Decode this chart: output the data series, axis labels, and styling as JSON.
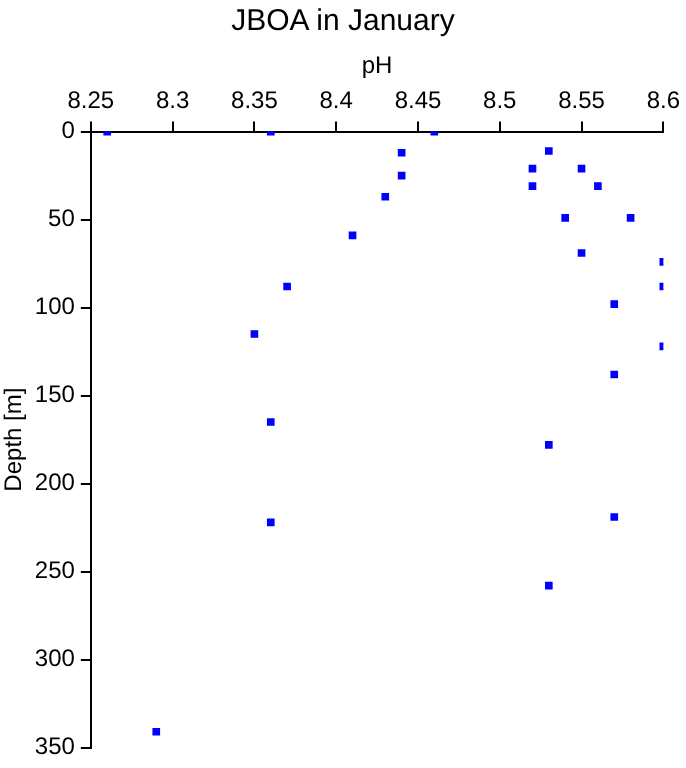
{
  "chart_data": {
    "type": "scatter",
    "title": "JBOA in January",
    "xlabel": "pH",
    "ylabel": "Depth [m]",
    "x": [
      8.26,
      8.36,
      8.46,
      8.44,
      8.44,
      8.43,
      8.41,
      8.37,
      8.53,
      8.52,
      8.52,
      8.55,
      8.56,
      8.54,
      8.58,
      8.55,
      8.6,
      8.6,
      8.57,
      8.35,
      8.6,
      8.57,
      8.36,
      8.53,
      8.36,
      8.57,
      8.53,
      8.29
    ],
    "values": [
      0,
      0,
      0,
      12,
      25,
      37,
      59,
      88,
      11,
      21,
      31,
      21,
      31,
      49,
      49,
      69,
      74,
      88,
      98,
      115,
      122,
      138,
      165,
      178,
      222,
      219,
      258,
      341
    ],
    "color": "#0000ff",
    "marker": "square",
    "xlim": [
      8.25,
      8.6
    ],
    "xticks": [
      8.25,
      8.3,
      8.35,
      8.4,
      8.45,
      8.5,
      8.55,
      8.6
    ],
    "ylim": [
      350,
      0
    ],
    "yticks": [
      0,
      50,
      100,
      150,
      200,
      250,
      300,
      350
    ],
    "grid": false,
    "legend": false
  }
}
